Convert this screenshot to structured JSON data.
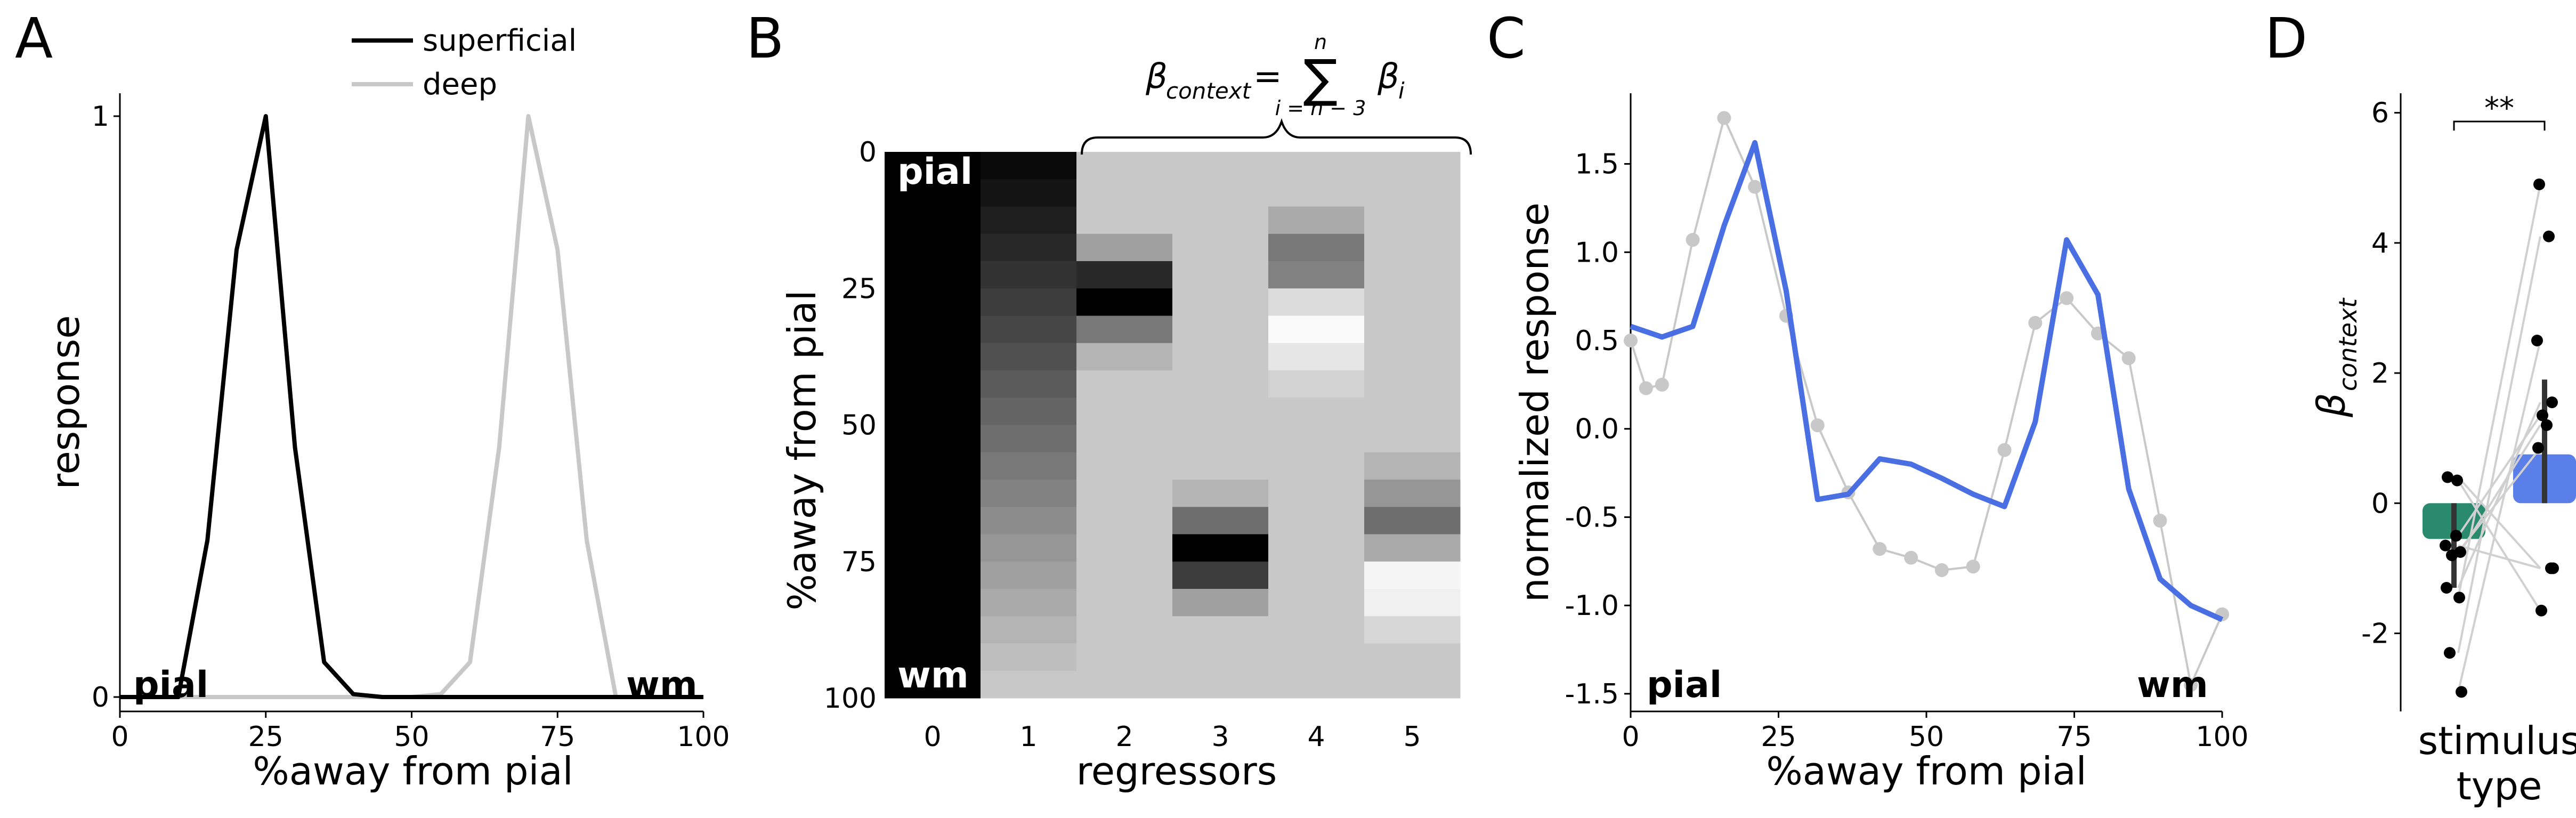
{
  "chart_data": [
    {
      "panel": "A",
      "type": "line",
      "xlabel": "%away from pial",
      "ylabel": "response",
      "xlim": [
        0,
        100
      ],
      "ylim": [
        0,
        1
      ],
      "x_ticks": [
        "0",
        "25",
        "50",
        "75",
        "100"
      ],
      "y_ticks": [
        "0",
        "1"
      ],
      "corner_labels": {
        "left": "pial",
        "right": "wm"
      },
      "colors": {
        "superficial": "#000000",
        "deep": "#c8c8c8"
      },
      "series": [
        {
          "name": "superficial",
          "x": [
            0,
            5,
            10,
            15,
            20,
            25,
            30,
            35,
            40,
            45,
            50,
            55,
            60,
            65,
            70,
            75,
            80,
            85,
            90,
            95,
            100
          ],
          "y": [
            0,
            0,
            0,
            0.27,
            0.77,
            1.0,
            0.43,
            0.06,
            0.005,
            0,
            0,
            0,
            0,
            0,
            0,
            0,
            0,
            0,
            0,
            0,
            0
          ]
        },
        {
          "name": "deep",
          "x": [
            0,
            5,
            10,
            15,
            20,
            25,
            30,
            35,
            40,
            45,
            50,
            55,
            60,
            65,
            70,
            75,
            80,
            85,
            90,
            95,
            100
          ],
          "y": [
            0,
            0,
            0,
            0,
            0,
            0,
            0,
            0,
            0,
            0,
            0,
            0.005,
            0.06,
            0.43,
            1.0,
            0.77,
            0.27,
            0,
            0,
            0,
            0
          ]
        }
      ]
    },
    {
      "panel": "B",
      "type": "heatmap",
      "xlabel": "regressors",
      "ylabel": "%away from pial",
      "x_ticks": [
        "0",
        "1",
        "2",
        "3",
        "4",
        "5"
      ],
      "y_ticks": [
        "0",
        "25",
        "50",
        "75",
        "100"
      ],
      "corner_labels": {
        "top": "pial",
        "bottom": "wm"
      },
      "formula": {
        "lhs": "β",
        "lhs_sub": "context",
        "eq": "=",
        "sigma": "∑",
        "sigma_top": "n",
        "sigma_bottom": "i = n − 3",
        "rhs": "β",
        "rhs_sub": "i"
      },
      "grayscale_note": "0 = black, 200 = light gray background",
      "columns": [
        {
          "regressor": 0,
          "values": [
            0,
            0,
            0,
            0,
            0,
            0,
            0,
            0,
            0,
            0,
            0,
            0,
            0,
            0,
            0,
            0,
            0,
            0,
            0,
            0
          ]
        },
        {
          "regressor": 1,
          "values": [
            10,
            20,
            30,
            40,
            50,
            60,
            70,
            80,
            90,
            100,
            110,
            120,
            130,
            140,
            150,
            160,
            170,
            180,
            190,
            200
          ]
        },
        {
          "regressor": 2,
          "values": [
            200,
            200,
            200,
            160,
            40,
            0,
            120,
            180,
            200,
            200,
            200,
            200,
            200,
            200,
            200,
            200,
            200,
            200,
            200,
            200
          ]
        },
        {
          "regressor": 3,
          "values": [
            200,
            200,
            200,
            200,
            200,
            200,
            200,
            200,
            200,
            200,
            200,
            200,
            180,
            110,
            0,
            60,
            160,
            200,
            200,
            200
          ]
        },
        {
          "regressor": 4,
          "values": [
            200,
            200,
            170,
            120,
            130,
            220,
            250,
            230,
            210,
            200,
            200,
            200,
            200,
            200,
            200,
            200,
            200,
            200,
            200,
            200
          ]
        },
        {
          "regressor": 5,
          "values": [
            200,
            200,
            200,
            200,
            200,
            200,
            200,
            200,
            200,
            200,
            200,
            180,
            150,
            110,
            170,
            245,
            240,
            215,
            200,
            200
          ]
        }
      ]
    },
    {
      "panel": "C",
      "type": "line",
      "xlabel": "%away from pial",
      "ylabel": "normalized response",
      "xlim": [
        0,
        100
      ],
      "ylim": [
        -1.6,
        1.9
      ],
      "x_ticks": [
        "0",
        "25",
        "50",
        "75",
        "100"
      ],
      "y_ticks": [
        "-1.5",
        "-1.0",
        "-0.5",
        "0.0",
        "0.5",
        "1.0",
        "1.5"
      ],
      "corner_labels": {
        "left": "pial",
        "right": "wm"
      },
      "colors": {
        "fit": "#4a6fe3",
        "data": "#c8c8c8"
      },
      "series": [
        {
          "name": "",
          "x": [
            0,
            5.3,
            10.5,
            15.8,
            21,
            26.3,
            31.6,
            36.8,
            42.1,
            47.4,
            52.6,
            57.9,
            63.2,
            68.4,
            73.7,
            79,
            84.2,
            89.5,
            94.7,
            100
          ],
          "y": [
            0.58,
            0.52,
            0.58,
            1.15,
            1.62,
            0.78,
            -0.4,
            -0.37,
            -0.17,
            -0.2,
            -0.28,
            -0.37,
            -0.44,
            0.04,
            1.07,
            0.76,
            -0.34,
            -0.85,
            -1.0,
            -1.08
          ]
        },
        {
          "name": "",
          "x": [
            0,
            2.6,
            5.3,
            10.5,
            15.8,
            21,
            26.3,
            31.6,
            36.8,
            42.1,
            47.4,
            52.6,
            57.9,
            63.2,
            68.4,
            73.7,
            79,
            84.2,
            89.5,
            94.7,
            100
          ],
          "y": [
            0.5,
            0.23,
            0.25,
            1.07,
            1.76,
            1.37,
            0.64,
            0.02,
            -0.36,
            -0.68,
            -0.73,
            -0.8,
            -0.78,
            -0.12,
            0.6,
            0.74,
            0.54,
            0.4,
            -0.52,
            -1.45,
            -1.05
          ]
        }
      ]
    },
    {
      "panel": "D",
      "type": "bar",
      "xlabel": "stimulus type",
      "ylabel": "β",
      "ylabel_sub": "context",
      "ylim": [
        -3.2,
        6.3
      ],
      "y_ticks": [
        "-2",
        "0",
        "2",
        "4",
        "6"
      ],
      "significance": "**",
      "colors": {
        "bar0": "#2a8a6e",
        "bar1": "#5b7fe8"
      },
      "bars": [
        {
          "value": -0.55,
          "err_low": -1.3,
          "err_high": 0.0
        },
        {
          "value": 0.75,
          "err_low": 0.0,
          "err_high": 1.9
        }
      ],
      "pairs": [
        [
          -1.3,
          1.55
        ],
        [
          -1.45,
          4.9
        ],
        [
          -2.3,
          4.1
        ],
        [
          -2.9,
          2.5
        ],
        [
          0.4,
          -1.0
        ],
        [
          0.35,
          -1.65
        ],
        [
          -0.65,
          -1.0
        ],
        [
          -0.75,
          0.85
        ],
        [
          -0.5,
          1.35
        ],
        [
          -0.8,
          1.2
        ]
      ]
    }
  ],
  "panel_labels": {
    "a": "A",
    "b": "B",
    "c": "C",
    "d": "D"
  },
  "legend": {
    "superficial": "superficial",
    "deep": "deep"
  },
  "d_xlabel_line1": "stimulus",
  "d_xlabel_line2": "type"
}
